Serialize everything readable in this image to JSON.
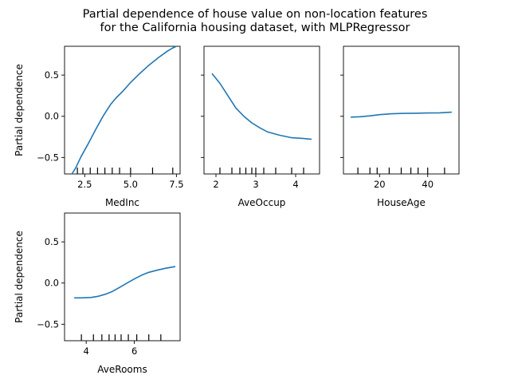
{
  "figure": {
    "title_line1": "Partial dependence of house value on non-location features",
    "title_line2": "for the California housing dataset, with MLPRegressor"
  },
  "chart_data": [
    {
      "type": "line",
      "xlabel": "MedInc",
      "ylabel": "Partial dependence",
      "xlim": [
        1.4,
        7.7
      ],
      "ylim": [
        -0.7,
        0.85
      ],
      "xticks": [
        2.5,
        5.0,
        7.5
      ],
      "xtick_labels": [
        "2.5",
        "5.0",
        "7.5"
      ],
      "yticks": [
        -0.5,
        0.0,
        0.5
      ],
      "ytick_labels": [
        "−0.5",
        "0.0",
        "0.5"
      ],
      "show_ytick_labels": true,
      "color": "#1f77b4",
      "x": [
        1.8,
        2.0,
        2.3,
        2.7,
        3.1,
        3.5,
        3.9,
        4.2,
        4.6,
        5.0,
        5.5,
        6.0,
        6.5,
        7.0,
        7.3,
        7.5
      ],
      "y": [
        -0.7,
        -0.63,
        -0.49,
        -0.33,
        -0.16,
        0.0,
        0.14,
        0.22,
        0.31,
        0.41,
        0.52,
        0.62,
        0.71,
        0.79,
        0.83,
        0.85
      ],
      "deciles": [
        2.1,
        2.4,
        2.8,
        3.2,
        3.6,
        4.0,
        4.4,
        5.0,
        6.2,
        7.3
      ]
    },
    {
      "type": "line",
      "xlabel": "AveOccup",
      "ylabel": "",
      "xlim": [
        1.7,
        4.6
      ],
      "ylim": [
        -0.7,
        0.85
      ],
      "xticks": [
        2,
        3,
        4
      ],
      "xtick_labels": [
        "2",
        "3",
        "4"
      ],
      "yticks": [
        -0.5,
        0.0,
        0.5
      ],
      "ytick_labels": [
        "−0.5",
        "0.0",
        "0.5"
      ],
      "show_ytick_labels": false,
      "color": "#1f77b4",
      "x": [
        1.9,
        2.1,
        2.3,
        2.5,
        2.7,
        2.9,
        3.1,
        3.3,
        3.6,
        3.9,
        4.2,
        4.4
      ],
      "y": [
        0.52,
        0.4,
        0.25,
        0.1,
        0.0,
        -0.08,
        -0.14,
        -0.19,
        -0.23,
        -0.26,
        -0.27,
        -0.28
      ],
      "deciles": [
        2.1,
        2.4,
        2.6,
        2.75,
        2.9,
        3.0,
        3.2,
        3.5,
        3.9,
        4.2
      ]
    },
    {
      "type": "line",
      "xlabel": "HouseAge",
      "ylabel": "",
      "xlim": [
        5,
        53
      ],
      "ylim": [
        -0.7,
        0.85
      ],
      "xticks": [
        20,
        40
      ],
      "xtick_labels": [
        "20",
        "40"
      ],
      "yticks": [
        -0.5,
        0.0,
        0.5
      ],
      "ytick_labels": [
        "−0.5",
        "0.0",
        "0.5"
      ],
      "show_ytick_labels": false,
      "color": "#1f77b4",
      "x": [
        8,
        12,
        16,
        20,
        25,
        30,
        35,
        40,
        45,
        50
      ],
      "y": [
        -0.01,
        -0.005,
        0.005,
        0.02,
        0.03,
        0.035,
        0.037,
        0.04,
        0.042,
        0.05
      ],
      "deciles": [
        11,
        16,
        19,
        24,
        29,
        33,
        36,
        40,
        47
      ]
    },
    {
      "type": "line",
      "xlabel": "AveRooms",
      "ylabel": "Partial dependence",
      "xlim": [
        3.1,
        7.9
      ],
      "ylim": [
        -0.7,
        0.85
      ],
      "xticks": [
        4,
        6
      ],
      "xtick_labels": [
        "4",
        "6"
      ],
      "yticks": [
        -0.5,
        0.0,
        0.5
      ],
      "ytick_labels": [
        "−0.5",
        "0.0",
        "0.5"
      ],
      "show_ytick_labels": true,
      "color": "#1f77b4",
      "x": [
        3.5,
        3.8,
        4.2,
        4.5,
        4.8,
        5.1,
        5.4,
        5.7,
        6.0,
        6.3,
        6.6,
        7.0,
        7.3,
        7.7
      ],
      "y": [
        -0.18,
        -0.18,
        -0.175,
        -0.16,
        -0.135,
        -0.1,
        -0.05,
        0.0,
        0.05,
        0.095,
        0.13,
        0.16,
        0.18,
        0.2
      ],
      "deciles": [
        3.8,
        4.3,
        4.65,
        4.95,
        5.2,
        5.45,
        5.75,
        6.1,
        6.6,
        7.1
      ]
    }
  ]
}
